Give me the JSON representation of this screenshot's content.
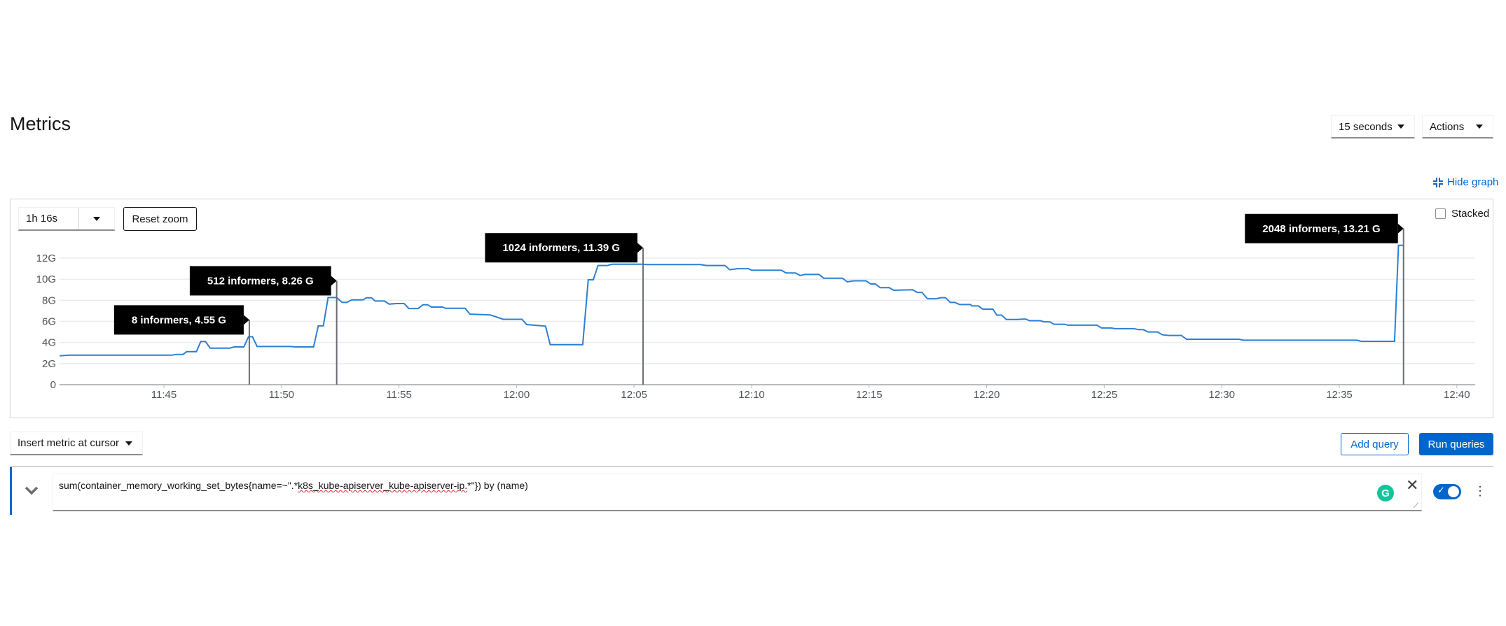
{
  "page": {
    "title": "Metrics"
  },
  "toolbar": {
    "refresh_interval": "15 seconds",
    "actions_label": "Actions",
    "hide_graph_label": "Hide graph"
  },
  "graph": {
    "time_range": "1h 16s",
    "reset_zoom_label": "Reset zoom",
    "stacked_label": "Stacked",
    "stacked_checked": false
  },
  "query_bar": {
    "insert_metric_label": "Insert metric at cursor",
    "add_query_label": "Add query",
    "run_queries_label": "Run queries"
  },
  "query": {
    "expr_pre": "sum(container_memory_working_set_bytes{name=~\".*",
    "expr_misspelled": "k8s_kube-apiserver_kube-apiserver-ip.",
    "expr_post": "*\"}) by (name)",
    "enabled": true
  },
  "colors": {
    "accent": "#0066cc",
    "series": "#2b7fd4",
    "tooltip_bg": "#000000",
    "grammarly": "#15c39a"
  },
  "chart_data": {
    "type": "line",
    "xlabel": "",
    "ylabel": "",
    "x_ticks": [
      "11:45",
      "11:50",
      "11:55",
      "12:00",
      "12:05",
      "12:10",
      "12:15",
      "12:20",
      "12:25",
      "12:30",
      "12:35",
      "12:40"
    ],
    "y_ticks": [
      {
        "v": 0,
        "label": "0"
      },
      {
        "v": 2,
        "label": "2G"
      },
      {
        "v": 4,
        "label": "4G"
      },
      {
        "v": 6,
        "label": "6G"
      },
      {
        "v": 8,
        "label": "8G"
      },
      {
        "v": 10,
        "label": "10G"
      },
      {
        "v": 12,
        "label": "12G"
      }
    ],
    "xlim": [
      "11:40:34",
      "12:40:46"
    ],
    "ylim": [
      0,
      13.6
    ],
    "grid": true,
    "series": [
      {
        "points": [
          [
            "11:40:34",
            2.73
          ],
          [
            "11:40:58",
            2.8
          ],
          [
            "11:45:20",
            2.8
          ],
          [
            "11:45:32",
            2.87
          ],
          [
            "11:45:49",
            2.87
          ],
          [
            "11:45:58",
            3.13
          ],
          [
            "11:46:23",
            3.13
          ],
          [
            "11:46:34",
            4.09
          ],
          [
            "11:46:46",
            4.09
          ],
          [
            "11:46:58",
            3.47
          ],
          [
            "11:47:48",
            3.47
          ],
          [
            "11:47:59",
            3.58
          ],
          [
            "11:48:24",
            3.58
          ],
          [
            "11:48:36",
            4.55
          ],
          [
            "11:48:46",
            4.55
          ],
          [
            "11:48:58",
            3.62
          ],
          [
            "11:50:24",
            3.62
          ],
          [
            "11:50:36",
            3.58
          ],
          [
            "11:51:22",
            3.58
          ],
          [
            "11:51:34",
            5.58
          ],
          [
            "11:51:47",
            5.58
          ],
          [
            "11:51:59",
            8.26
          ],
          [
            "11:52:21",
            8.26
          ],
          [
            "11:52:35",
            7.8
          ],
          [
            "11:52:47",
            7.8
          ],
          [
            "11:52:59",
            8.04
          ],
          [
            "11:53:28",
            8.04
          ],
          [
            "11:53:37",
            8.24
          ],
          [
            "11:53:50",
            8.24
          ],
          [
            "11:53:59",
            7.93
          ],
          [
            "11:54:23",
            7.93
          ],
          [
            "11:54:35",
            7.64
          ],
          [
            "11:54:53",
            7.69
          ],
          [
            "11:55:13",
            7.69
          ],
          [
            "11:55:25",
            7.22
          ],
          [
            "11:55:49",
            7.22
          ],
          [
            "11:56:01",
            7.58
          ],
          [
            "11:56:13",
            7.58
          ],
          [
            "11:56:23",
            7.36
          ],
          [
            "11:56:51",
            7.36
          ],
          [
            "11:56:59",
            7.24
          ],
          [
            "11:57:49",
            7.24
          ],
          [
            "11:58:01",
            6.69
          ],
          [
            "11:58:53",
            6.62
          ],
          [
            "11:59:26",
            6.2
          ],
          [
            "12:00:14",
            6.2
          ],
          [
            "12:00:26",
            5.7
          ],
          [
            "12:01:14",
            5.55
          ],
          [
            "12:01:26",
            3.8
          ],
          [
            "12:02:49",
            3.8
          ],
          [
            "12:03:03",
            9.95
          ],
          [
            "12:03:16",
            9.95
          ],
          [
            "12:03:28",
            11.3
          ],
          [
            "12:03:52",
            11.3
          ],
          [
            "12:04:04",
            11.42
          ],
          [
            "12:05:21",
            11.42
          ],
          [
            "12:05:33",
            11.39
          ],
          [
            "12:07:49",
            11.39
          ],
          [
            "12:08:05",
            11.3
          ],
          [
            "12:08:52",
            11.3
          ],
          [
            "12:09:04",
            10.9
          ],
          [
            "12:09:25",
            11.0
          ],
          [
            "12:09:52",
            11.0
          ],
          [
            "12:10:00",
            10.85
          ],
          [
            "12:11:16",
            10.85
          ],
          [
            "12:11:28",
            10.6
          ],
          [
            "12:11:52",
            10.6
          ],
          [
            "12:12:04",
            10.35
          ],
          [
            "12:12:16",
            10.45
          ],
          [
            "12:12:52",
            10.45
          ],
          [
            "12:13:04",
            10.1
          ],
          [
            "12:13:52",
            10.1
          ],
          [
            "12:14:04",
            9.75
          ],
          [
            "12:14:20",
            9.85
          ],
          [
            "12:14:52",
            9.85
          ],
          [
            "12:15:04",
            9.55
          ],
          [
            "12:15:16",
            9.55
          ],
          [
            "12:15:28",
            9.2
          ],
          [
            "12:15:51",
            9.2
          ],
          [
            "12:16:03",
            8.95
          ],
          [
            "12:16:51",
            9.0
          ],
          [
            "12:17:03",
            8.75
          ],
          [
            "12:17:15",
            8.75
          ],
          [
            "12:17:29",
            8.15
          ],
          [
            "12:17:51",
            8.15
          ],
          [
            "12:18:03",
            8.25
          ],
          [
            "12:18:15",
            8.25
          ],
          [
            "12:18:27",
            7.8
          ],
          [
            "12:18:39",
            7.8
          ],
          [
            "12:18:51",
            7.6
          ],
          [
            "12:19:19",
            7.6
          ],
          [
            "12:19:22",
            7.47
          ],
          [
            "12:19:39",
            7.47
          ],
          [
            "12:19:50",
            7.16
          ],
          [
            "12:20:16",
            7.16
          ],
          [
            "12:20:26",
            6.6
          ],
          [
            "12:20:38",
            6.6
          ],
          [
            "12:20:50",
            6.18
          ],
          [
            "12:21:19",
            6.18
          ],
          [
            "12:21:31",
            6.22
          ],
          [
            "12:21:40",
            6.22
          ],
          [
            "12:21:49",
            6.07
          ],
          [
            "12:22:17",
            6.07
          ],
          [
            "12:22:26",
            5.96
          ],
          [
            "12:22:41",
            5.96
          ],
          [
            "12:22:52",
            5.73
          ],
          [
            "12:23:19",
            5.73
          ],
          [
            "12:23:27",
            5.64
          ],
          [
            "12:24:41",
            5.64
          ],
          [
            "12:24:53",
            5.38
          ],
          [
            "12:25:17",
            5.38
          ],
          [
            "12:25:28",
            5.31
          ],
          [
            "12:26:16",
            5.31
          ],
          [
            "12:26:28",
            5.22
          ],
          [
            "12:26:40",
            5.22
          ],
          [
            "12:26:52",
            5.0
          ],
          [
            "12:27:16",
            5.0
          ],
          [
            "12:27:29",
            4.73
          ],
          [
            "12:27:46",
            4.67
          ],
          [
            "12:28:17",
            4.67
          ],
          [
            "12:28:30",
            4.31
          ],
          [
            "12:30:44",
            4.31
          ],
          [
            "12:30:55",
            4.22
          ],
          [
            "12:35:44",
            4.22
          ],
          [
            "12:35:56",
            4.11
          ],
          [
            "12:37:21",
            4.11
          ],
          [
            "12:37:31",
            13.21
          ],
          [
            "12:37:44",
            13.21
          ]
        ]
      }
    ],
    "annotations": [
      {
        "label": "8 informers, 4.55 G",
        "time": "11:48:38",
        "value": 4.55
      },
      {
        "label": "512 informers, 8.26 G",
        "time": "11:52:21",
        "value": 8.26
      },
      {
        "label": "1024 informers, 11.39 G",
        "time": "12:05:23",
        "value": 11.39
      },
      {
        "label": "2048 informers, 13.21 G",
        "time": "12:37:44",
        "value": 13.21
      }
    ]
  }
}
